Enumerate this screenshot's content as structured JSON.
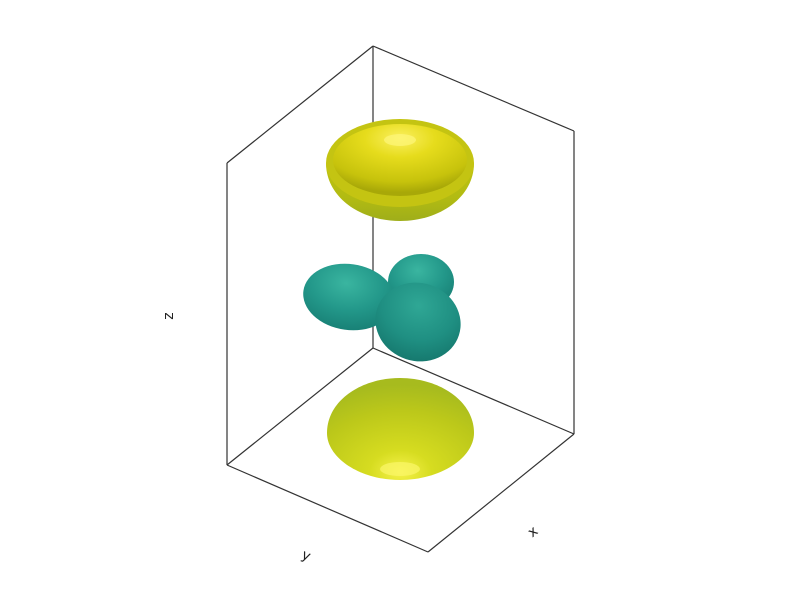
{
  "axes": {
    "x_label": "x",
    "y_label": "y",
    "z_label": "z"
  },
  "colors": {
    "box_edge": "#333333",
    "positive_lobe": "#c8d820",
    "negative_lobe": "#1f9a8a"
  },
  "surfaces": [
    {
      "name": "upper-lobe",
      "sign": "positive"
    },
    {
      "name": "middle-lobes",
      "sign": "negative"
    },
    {
      "name": "lower-lobe",
      "sign": "positive"
    }
  ]
}
